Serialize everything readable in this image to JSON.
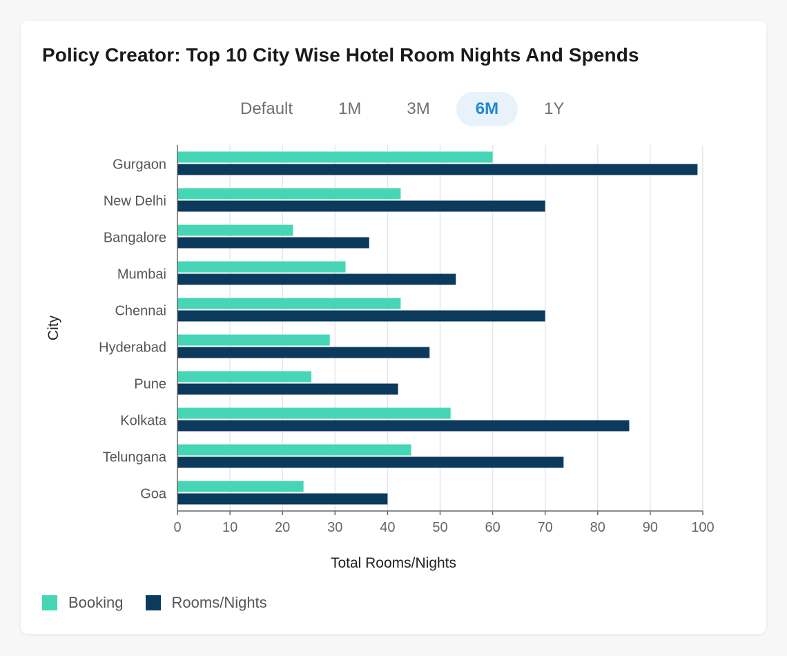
{
  "title": "Policy Creator: Top 10 City Wise Hotel Room Nights And Spends",
  "tabs": [
    {
      "label": "Default",
      "active": false
    },
    {
      "label": "1M",
      "active": false
    },
    {
      "label": "3M",
      "active": false
    },
    {
      "label": "6M",
      "active": true
    },
    {
      "label": "1Y",
      "active": false
    }
  ],
  "colors": {
    "booking": "#46d6b5",
    "rooms": "#0b3a5d",
    "accent": "#1e88d2"
  },
  "legend": [
    {
      "label": "Booking",
      "color": "#46d6b5"
    },
    {
      "label": "Rooms/Nights",
      "color": "#0b3a5d"
    }
  ],
  "chart_data": {
    "type": "bar",
    "orientation": "horizontal",
    "categories": [
      "Gurgaon",
      "New Delhi",
      "Bangalore",
      "Mumbai",
      "Chennai",
      "Hyderabad",
      "Pune",
      "Kolkata",
      "Telungana",
      "Goa"
    ],
    "series": [
      {
        "name": "Booking",
        "values": [
          60,
          42.5,
          22,
          32,
          42.5,
          29,
          25.5,
          52,
          44.5,
          24
        ]
      },
      {
        "name": "Rooms/Nights",
        "values": [
          99,
          70,
          36.5,
          53,
          70,
          48,
          42,
          86,
          73.5,
          40
        ]
      }
    ],
    "xlabel": "Total Rooms/Nights",
    "ylabel": "City",
    "xlim": [
      0,
      100
    ],
    "xticks": [
      0,
      10,
      20,
      30,
      40,
      50,
      60,
      70,
      80,
      90,
      100
    ],
    "grid": true,
    "legend_position": "bottom-left"
  }
}
